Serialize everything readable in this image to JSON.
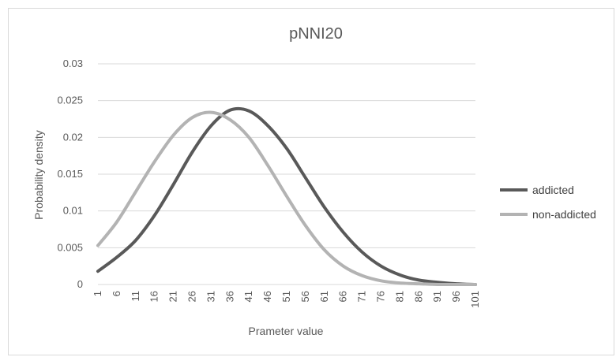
{
  "chart_data": {
    "type": "line",
    "title": "pNNI20",
    "xlabel": "Prameter value",
    "ylabel": "Probability density",
    "ylim": [
      0,
      0.03
    ],
    "yticks": [
      "0",
      "0.005",
      "0.01",
      "0.015",
      "0.02",
      "0.025",
      "0.03"
    ],
    "x_range": [
      1,
      101
    ],
    "xticks": [
      "1",
      "6",
      "11",
      "16",
      "21",
      "26",
      "31",
      "36",
      "41",
      "46",
      "51",
      "56",
      "61",
      "66",
      "71",
      "76",
      "81",
      "86",
      "91",
      "96",
      "101"
    ],
    "grid": true,
    "legend_position": "right",
    "series": [
      {
        "name": "addicted",
        "color": "#595959",
        "x": [
          1,
          6,
          11,
          16,
          21,
          26,
          31,
          36,
          41,
          46,
          51,
          56,
          61,
          66,
          71,
          76,
          81,
          86,
          91,
          96,
          101
        ],
        "values": [
          0.0018,
          0.0037,
          0.006,
          0.0094,
          0.0136,
          0.018,
          0.0216,
          0.0237,
          0.0236,
          0.0216,
          0.0185,
          0.0145,
          0.0105,
          0.0071,
          0.0044,
          0.0025,
          0.0013,
          0.0006,
          0.0003,
          0.0001,
          0.0
        ]
      },
      {
        "name": "non-addicted",
        "color": "#b3b3b3",
        "x": [
          1,
          6,
          11,
          16,
          21,
          26,
          31,
          36,
          41,
          46,
          51,
          56,
          61,
          66,
          71,
          76,
          81,
          86,
          91,
          96,
          101
        ],
        "values": [
          0.0053,
          0.0085,
          0.0126,
          0.0167,
          0.0203,
          0.0227,
          0.0234,
          0.0224,
          0.02,
          0.0162,
          0.012,
          0.008,
          0.0047,
          0.0025,
          0.0012,
          0.0005,
          0.0002,
          0.0001,
          0.0,
          0.0,
          0.0
        ]
      }
    ]
  }
}
